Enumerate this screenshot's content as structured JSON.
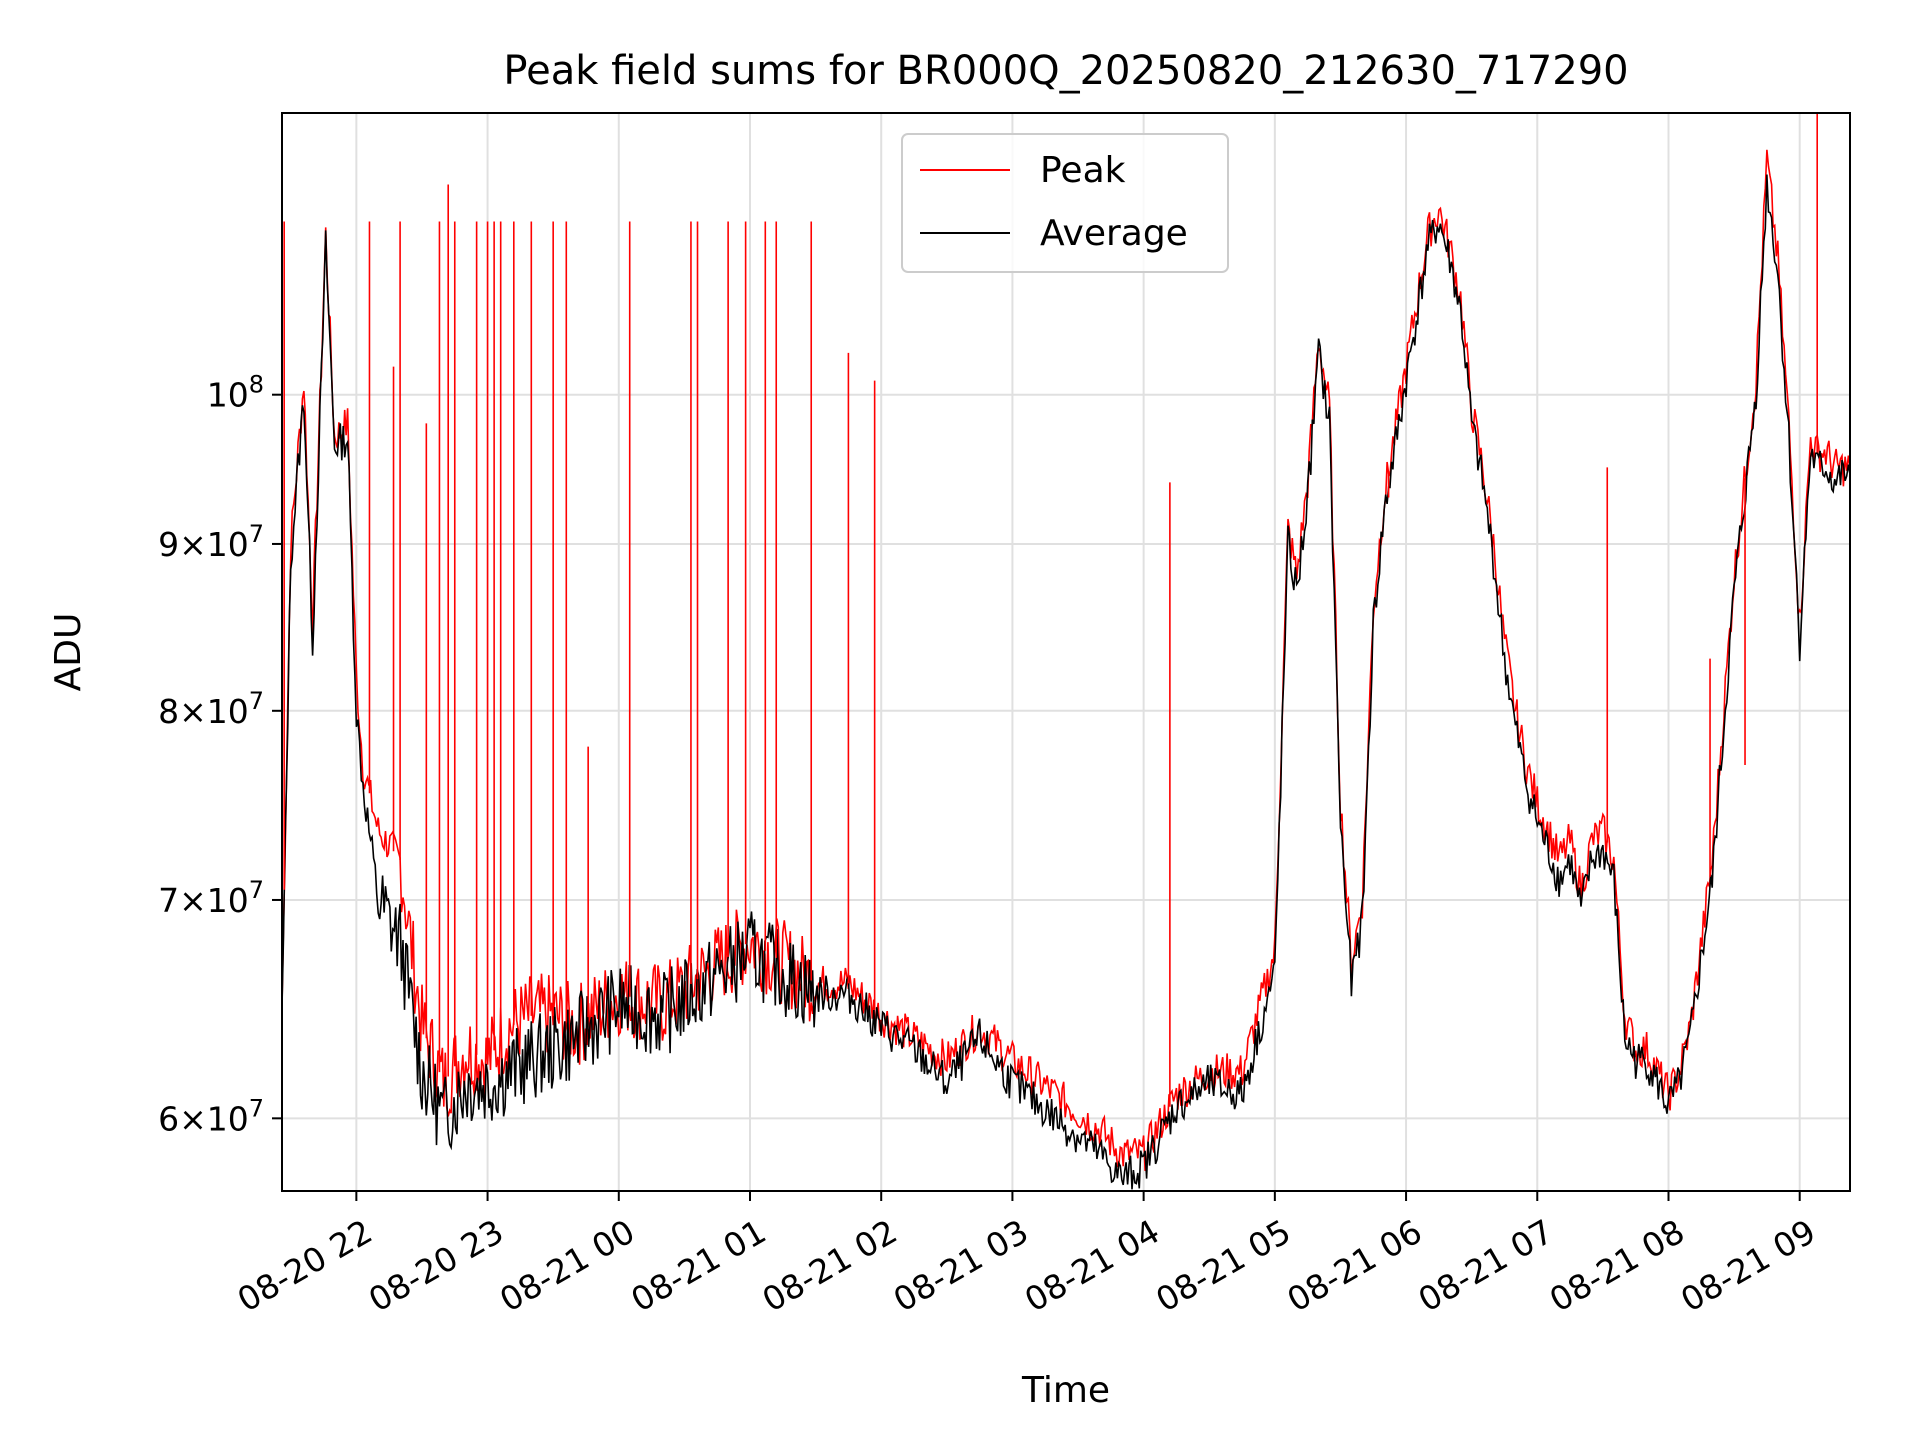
{
  "chart_data": {
    "type": "line",
    "title": "Peak field sums for BR000Q_20250820_212630_717290",
    "xlabel": "Time",
    "ylabel": "ADU",
    "yscale": "log",
    "xlim": [
      "2025-08-20 21:26",
      "2025-08-21 09:23"
    ],
    "ylim": [
      57000000,
      122000000
    ],
    "grid": true,
    "legend_position": "top-center",
    "x_tick_labels": [
      "08-20 22",
      "08-20 23",
      "08-21 00",
      "08-21 01",
      "08-21 02",
      "08-21 03",
      "08-21 04",
      "08-21 05",
      "08-21 06",
      "08-21 07",
      "08-21 08",
      "08-21 09"
    ],
    "y_tick_labels": [
      {
        "mantissa": "6",
        "exp": "7",
        "value": 60000000
      },
      {
        "mantissa": "7",
        "exp": "7",
        "value": 70000000
      },
      {
        "mantissa": "8",
        "exp": "7",
        "value": 80000000
      },
      {
        "mantissa": "9",
        "exp": "7",
        "value": 90000000
      },
      {
        "mantissa": "",
        "exp": "8",
        "value": 100000000
      }
    ],
    "x": [
      "2025-08-20 21:26",
      "2025-08-20 21:30",
      "2025-08-20 21:36",
      "2025-08-20 21:40",
      "2025-08-20 21:46",
      "2025-08-20 21:50",
      "2025-08-20 21:56",
      "2025-08-20 22:00",
      "2025-08-20 22:03",
      "2025-08-20 22:10",
      "2025-08-20 22:20",
      "2025-08-20 22:30",
      "2025-08-20 22:40",
      "2025-08-20 22:50",
      "2025-08-20 23:00",
      "2025-08-20 23:10",
      "2025-08-20 23:20",
      "2025-08-20 23:30",
      "2025-08-20 23:40",
      "2025-08-21 00:00",
      "2025-08-21 00:20",
      "2025-08-21 00:40",
      "2025-08-21 01:00",
      "2025-08-21 01:15",
      "2025-08-21 01:30",
      "2025-08-21 01:45",
      "2025-08-21 02:00",
      "2025-08-21 02:15",
      "2025-08-21 02:30",
      "2025-08-21 02:45",
      "2025-08-21 03:00",
      "2025-08-21 03:20",
      "2025-08-21 03:40",
      "2025-08-21 03:50",
      "2025-08-21 04:00",
      "2025-08-21 04:15",
      "2025-08-21 04:30",
      "2025-08-21 04:45",
      "2025-08-21 05:00",
      "2025-08-21 05:06",
      "2025-08-21 05:10",
      "2025-08-21 05:15",
      "2025-08-21 05:20",
      "2025-08-21 05:25",
      "2025-08-21 05:30",
      "2025-08-21 05:35",
      "2025-08-21 05:40",
      "2025-08-21 05:45",
      "2025-08-21 05:50",
      "2025-08-21 06:00",
      "2025-08-21 06:10",
      "2025-08-21 06:15",
      "2025-08-21 06:20",
      "2025-08-21 06:25",
      "2025-08-21 06:30",
      "2025-08-21 06:35",
      "2025-08-21 06:40",
      "2025-08-21 06:45",
      "2025-08-21 06:50",
      "2025-08-21 06:55",
      "2025-08-21 07:00",
      "2025-08-21 07:10",
      "2025-08-21 07:15",
      "2025-08-21 07:20",
      "2025-08-21 07:25",
      "2025-08-21 07:30",
      "2025-08-21 07:35",
      "2025-08-21 07:40",
      "2025-08-21 07:45",
      "2025-08-21 07:50",
      "2025-08-21 08:00",
      "2025-08-21 08:05",
      "2025-08-21 08:10",
      "2025-08-21 08:20",
      "2025-08-21 08:30",
      "2025-08-21 08:40",
      "2025-08-21 08:45",
      "2025-08-21 08:50",
      "2025-08-21 08:55",
      "2025-08-21 09:00",
      "2025-08-21 09:05",
      "2025-08-21 09:08",
      "2025-08-21 09:12",
      "2025-08-21 09:16",
      "2025-08-21 09:20",
      "2025-08-21 09:23"
    ],
    "series": [
      {
        "name": "Peak",
        "color": "#ff0000",
        "values": [
          65000000,
          90000000,
          101000000,
          85000000,
          112000000,
          97000000,
          98000000,
          82000000,
          77000000,
          73500000,
          72000000,
          64000000,
          61500000,
          63000000,
          62500000,
          64000000,
          64500000,
          64500000,
          64000000,
          65500000,
          65000000,
          66500000,
          68000000,
          67000000,
          66000000,
          66000000,
          64500000,
          63500000,
          62500000,
          64000000,
          62500000,
          61000000,
          59500000,
          58500000,
          58500000,
          61000000,
          62000000,
          62000000,
          67500000,
          91000000,
          88000000,
          94000000,
          104000000,
          99000000,
          75000000,
          67000000,
          70000000,
          86000000,
          93000000,
          102000000,
          112000000,
          114000000,
          111000000,
          107000000,
          99000000,
          95000000,
          90000000,
          84000000,
          80000000,
          77000000,
          75000000,
          72000000,
          73000000,
          70500000,
          73000000,
          73500000,
          72000000,
          64500000,
          63000000,
          63000000,
          61000000,
          62000000,
          64000000,
          72000000,
          88000000,
          101000000,
          118000000,
          110000000,
          98000000,
          85000000,
          97000000,
          96000000,
          96000000,
          95000000,
          95000000,
          95000000
        ]
      },
      {
        "name": "Average",
        "color": "#000000",
        "values": [
          64500000,
          89000000,
          100000000,
          84000000,
          111000000,
          96500000,
          97000000,
          80000000,
          76000000,
          70000000,
          68000000,
          62000000,
          60000000,
          61500000,
          61500000,
          62000000,
          62500000,
          63000000,
          63500000,
          65000000,
          64500000,
          66000000,
          67500000,
          66500000,
          65500000,
          65500000,
          64000000,
          63000000,
          61500000,
          63500000,
          61500000,
          60000000,
          58500000,
          57500000,
          58000000,
          60500000,
          61500000,
          61000000,
          66500000,
          90000000,
          87000000,
          93000000,
          103000000,
          98000000,
          74000000,
          66000000,
          69000000,
          85000000,
          92000000,
          101000000,
          111000000,
          113000000,
          110000000,
          106000000,
          98000000,
          94000000,
          89000000,
          83000000,
          79000000,
          76000000,
          74000000,
          71000000,
          72000000,
          69500000,
          72000000,
          72500000,
          71000000,
          63500000,
          62500000,
          62500000,
          60500000,
          61500000,
          63500000,
          71000000,
          87000000,
          100000000,
          116000000,
          109000000,
          97000000,
          84000000,
          96000000,
          95000000,
          95000000,
          94000000,
          94500000,
          94500000
        ]
      }
    ],
    "peak_spikes": [
      {
        "x": "2025-08-20 21:27",
        "y": 113000000
      },
      {
        "x": "2025-08-20 22:06",
        "y": 113000000
      },
      {
        "x": "2025-08-20 22:17",
        "y": 102000000
      },
      {
        "x": "2025-08-20 22:20",
        "y": 113000000
      },
      {
        "x": "2025-08-20 22:32",
        "y": 98000000
      },
      {
        "x": "2025-08-20 22:38",
        "y": 113000000
      },
      {
        "x": "2025-08-20 22:42",
        "y": 116000000
      },
      {
        "x": "2025-08-20 22:45",
        "y": 113000000
      },
      {
        "x": "2025-08-20 22:55",
        "y": 113000000
      },
      {
        "x": "2025-08-20 23:00",
        "y": 113000000
      },
      {
        "x": "2025-08-20 23:03",
        "y": 113000000
      },
      {
        "x": "2025-08-20 23:06",
        "y": 113000000
      },
      {
        "x": "2025-08-20 23:12",
        "y": 113000000
      },
      {
        "x": "2025-08-20 23:20",
        "y": 113000000
      },
      {
        "x": "2025-08-20 23:30",
        "y": 113000000
      },
      {
        "x": "2025-08-20 23:36",
        "y": 113000000
      },
      {
        "x": "2025-08-20 23:46",
        "y": 78000000
      },
      {
        "x": "2025-08-21 00:05",
        "y": 113000000
      },
      {
        "x": "2025-08-21 00:33",
        "y": 113000000
      },
      {
        "x": "2025-08-21 00:36",
        "y": 113000000
      },
      {
        "x": "2025-08-21 00:50",
        "y": 113000000
      },
      {
        "x": "2025-08-21 00:58",
        "y": 113000000
      },
      {
        "x": "2025-08-21 01:07",
        "y": 113000000
      },
      {
        "x": "2025-08-21 01:12",
        "y": 113000000
      },
      {
        "x": "2025-08-21 01:28",
        "y": 113000000
      },
      {
        "x": "2025-08-21 01:45",
        "y": 103000000
      },
      {
        "x": "2025-08-21 01:57",
        "y": 101000000
      },
      {
        "x": "2025-08-21 04:12",
        "y": 94000000
      },
      {
        "x": "2025-08-21 05:52",
        "y": 93000000
      },
      {
        "x": "2025-08-21 07:32",
        "y": 95000000
      },
      {
        "x": "2025-08-21 08:19",
        "y": 83000000
      },
      {
        "x": "2025-08-21 08:35",
        "y": 77000000
      },
      {
        "x": "2025-08-21 09:08",
        "y": 122000000
      }
    ]
  }
}
